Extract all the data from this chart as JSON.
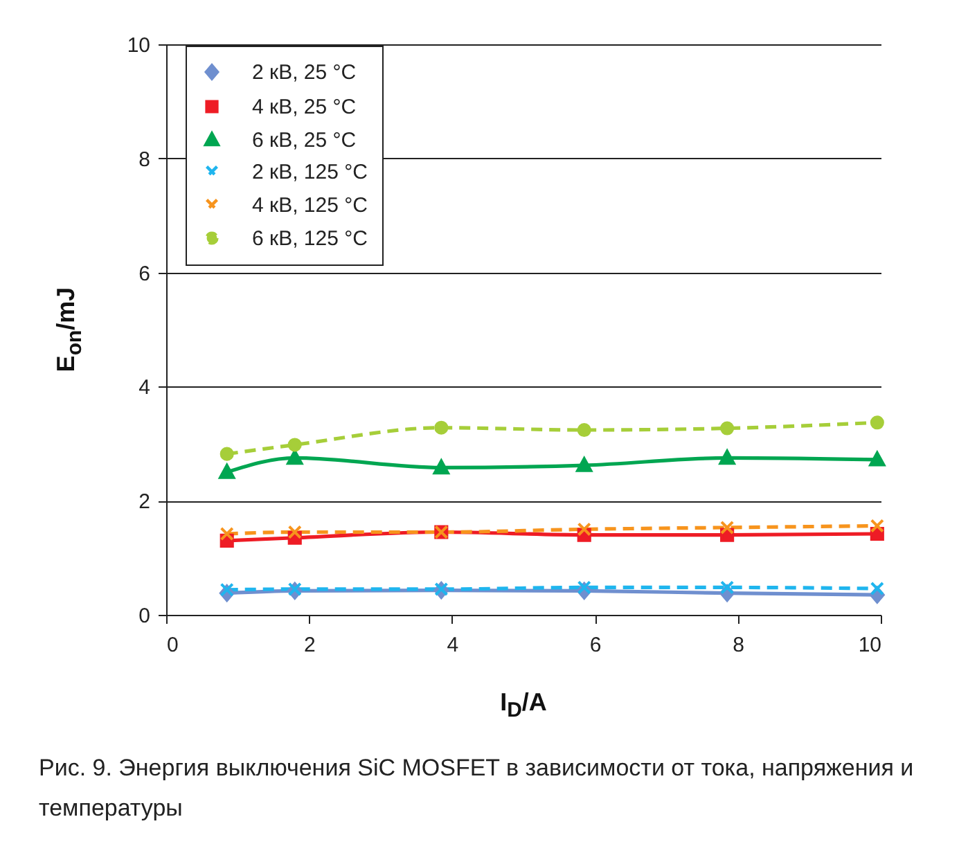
{
  "chart_data": {
    "type": "line",
    "xlabel": "I$_{D}$/A",
    "ylabel": "E$_{on}$/mJ",
    "x": [
      0.85,
      1.8,
      3.85,
      5.85,
      7.85,
      9.95
    ],
    "series": [
      {
        "name": "2 кВ, 25 °C",
        "color": "#6f8fcf",
        "marker": "diamond",
        "line_style": "solid",
        "values": [
          0.38,
          0.42,
          0.43,
          0.42,
          0.38,
          0.35
        ]
      },
      {
        "name": "4 кВ, 25 °C",
        "color": "#ee1c25",
        "marker": "square",
        "line_style": "solid",
        "values": [
          1.3,
          1.35,
          1.45,
          1.4,
          1.4,
          1.42
        ]
      },
      {
        "name": "6 кВ, 25 °C",
        "color": "#00a651",
        "marker": "triangle",
        "line_style": "solid",
        "values": [
          2.5,
          2.75,
          2.58,
          2.62,
          2.75,
          2.72
        ]
      },
      {
        "name": "2 кВ, 125 °C",
        "color": "#1fb5ee",
        "marker": "cross",
        "line_style": "dashed",
        "values": [
          0.44,
          0.45,
          0.45,
          0.48,
          0.48,
          0.46
        ]
      },
      {
        "name": "4 кВ, 125 °C",
        "color": "#f7941d",
        "marker": "cross",
        "line_style": "dashed",
        "values": [
          1.42,
          1.45,
          1.45,
          1.5,
          1.53,
          1.56
        ]
      },
      {
        "name": "6 кВ, 125 °C",
        "color": "#a6ce39",
        "marker": "circle",
        "line_style": "dashed",
        "values": [
          2.82,
          2.98,
          3.28,
          3.24,
          3.27,
          3.37
        ]
      }
    ],
    "xlim": [
      0,
      10
    ],
    "xticks": [
      0,
      2,
      4,
      6,
      8,
      10
    ],
    "ylim": [
      0,
      10
    ],
    "yticks": [
      0,
      2,
      4,
      6,
      8,
      10
    ],
    "grid": "y",
    "legend": "top left",
    "annotations": [
      "Рис. 9. Энергия выключения SiC MOSFET в зависимости от тока, напряжения и температуры"
    ]
  }
}
